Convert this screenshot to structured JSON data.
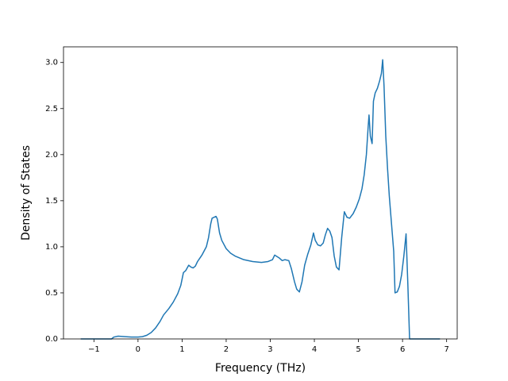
{
  "chart_data": {
    "type": "line",
    "xlabel": "Frequency (THz)",
    "ylabel": "Density of States",
    "color": "#1f77b4",
    "x": [
      -1.3,
      -0.6,
      -0.55,
      -0.45,
      -0.3,
      -0.15,
      0,
      0.1,
      0.2,
      0.3,
      0.4,
      0.5,
      0.58,
      0.7,
      0.8,
      0.9,
      0.97,
      1.03,
      1.08,
      1.15,
      1.2,
      1.25,
      1.3,
      1.35,
      1.45,
      1.55,
      1.6,
      1.65,
      1.68,
      1.77,
      1.8,
      1.85,
      1.9,
      2.0,
      2.1,
      2.2,
      2.4,
      2.6,
      2.8,
      2.95,
      3.05,
      3.1,
      3.2,
      3.27,
      3.33,
      3.42,
      3.48,
      3.55,
      3.6,
      3.66,
      3.72,
      3.78,
      3.85,
      3.92,
      3.98,
      4.02,
      4.08,
      4.14,
      4.2,
      4.25,
      4.3,
      4.35,
      4.4,
      4.45,
      4.5,
      4.56,
      4.62,
      4.68,
      4.74,
      4.8,
      4.88,
      4.95,
      5.02,
      5.08,
      5.13,
      5.18,
      5.22,
      5.24,
      5.27,
      5.31,
      5.34,
      5.38,
      5.43,
      5.48,
      5.52,
      5.55,
      5.58,
      5.62,
      5.66,
      5.7,
      5.75,
      5.8,
      5.83,
      5.88,
      5.93,
      5.98,
      6.03,
      6.08,
      6.12,
      6.16,
      6.85
    ],
    "values": [
      0,
      0,
      0.02,
      0.03,
      0.025,
      0.02,
      0.02,
      0.025,
      0.04,
      0.07,
      0.12,
      0.19,
      0.26,
      0.33,
      0.4,
      0.49,
      0.58,
      0.72,
      0.74,
      0.8,
      0.78,
      0.77,
      0.79,
      0.84,
      0.91,
      1.0,
      1.1,
      1.25,
      1.31,
      1.33,
      1.3,
      1.15,
      1.07,
      0.98,
      0.93,
      0.9,
      0.86,
      0.84,
      0.83,
      0.84,
      0.86,
      0.91,
      0.88,
      0.85,
      0.86,
      0.85,
      0.76,
      0.62,
      0.54,
      0.51,
      0.62,
      0.8,
      0.92,
      1.02,
      1.15,
      1.07,
      1.02,
      1.01,
      1.04,
      1.13,
      1.2,
      1.17,
      1.1,
      0.9,
      0.78,
      0.75,
      1.1,
      1.38,
      1.32,
      1.31,
      1.36,
      1.43,
      1.52,
      1.63,
      1.78,
      2.0,
      2.3,
      2.43,
      2.2,
      2.12,
      2.58,
      2.67,
      2.72,
      2.8,
      2.88,
      3.03,
      2.75,
      2.2,
      1.85,
      1.55,
      1.25,
      0.95,
      0.5,
      0.51,
      0.57,
      0.7,
      0.9,
      1.14,
      0.6,
      0,
      0
    ],
    "xlim": [
      -1.69,
      7.24
    ],
    "ylim": [
      0,
      3.17
    ],
    "xticks": [
      {
        "value": -1,
        "label": "−1"
      },
      0,
      1,
      2,
      3,
      4,
      5,
      6,
      7
    ],
    "yticks": [
      {
        "value": 0,
        "label": "0.0"
      },
      {
        "value": 0.5,
        "label": "0.5"
      },
      {
        "value": 1,
        "label": "1.0"
      },
      {
        "value": 1.5,
        "label": "1.5"
      },
      {
        "value": 2,
        "label": "2.0"
      },
      {
        "value": 2.5,
        "label": "2.5"
      },
      {
        "value": 3,
        "label": "3.0"
      }
    ]
  }
}
